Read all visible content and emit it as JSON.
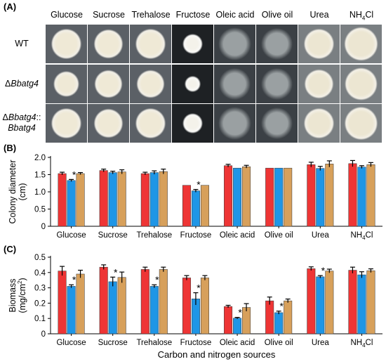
{
  "panel_a": {
    "label": "(A)",
    "columns": [
      "Glucose",
      "Sucrose",
      "Trehalose",
      "Fructose",
      "Oleic acid",
      "Olive oil",
      "Urea",
      "NH4Cl"
    ],
    "last_column_parts": {
      "pre": "NH",
      "sub": "4",
      "post": "Cl"
    },
    "rows": [
      {
        "main": "WT",
        "sub": ""
      },
      {
        "main": "ΔBbatg4",
        "sub": ""
      },
      {
        "main": "ΔBbatg4::",
        "sub": "Bbatg4"
      }
    ]
  },
  "chart_data": [
    {
      "type": "bar",
      "panel": "(B)",
      "ylabel": "Colony diameter",
      "ylabel_unit": "(cm)",
      "ylim": [
        0,
        2.0
      ],
      "yticks": [
        "0",
        "0.5",
        "1.0",
        "1.5",
        "2.0"
      ],
      "categories": [
        "Glucose",
        "Sucrose",
        "Trehalose",
        "Fructose",
        "Oleic acid",
        "Olive oil",
        "Urea",
        "NH4Cl"
      ],
      "series": [
        {
          "color": "#ee3535",
          "values": [
            1.53,
            1.62,
            1.53,
            1.19,
            1.76,
            1.69,
            1.79,
            1.82
          ],
          "errors": [
            0.04,
            0.04,
            0.04,
            0.0,
            0.04,
            0.0,
            0.07,
            0.09
          ]
        },
        {
          "color": "#1f96e6",
          "values": [
            1.33,
            1.56,
            1.56,
            1.03,
            1.69,
            1.69,
            1.68,
            1.72
          ],
          "errors": [
            0.03,
            0.04,
            0.05,
            0.04,
            0.0,
            0.0,
            0.06,
            0.04
          ]
        },
        {
          "color": "#d7a05b",
          "values": [
            1.53,
            1.58,
            1.59,
            1.19,
            1.73,
            1.69,
            1.81,
            1.79
          ],
          "errors": [
            0.03,
            0.06,
            0.07,
            0.0,
            0.04,
            0.0,
            0.09,
            0.06
          ]
        }
      ],
      "significance": [
        {
          "category": 0,
          "series": 1,
          "mark": "*"
        },
        {
          "category": 3,
          "series": 1,
          "mark": "*"
        }
      ]
    },
    {
      "type": "bar",
      "panel": "(C)",
      "ylabel": "Biomass",
      "ylabel_unit": "(mg/cm",
      "ylabel_sup": "2",
      "ylabel_close": ")",
      "xlabel": "Carbon and nitrogen sources",
      "ylim": [
        0,
        0.5
      ],
      "yticks": [
        "0",
        "0.1",
        "0.2",
        "0.3",
        "0.4",
        "0.5"
      ],
      "categories": [
        "Glucose",
        "Sucrose",
        "Trehalose",
        "Fructose",
        "Oleic acid",
        "Olive oil",
        "Urea",
        "NH4Cl"
      ],
      "series": [
        {
          "color": "#ee3535",
          "values": [
            0.41,
            0.435,
            0.42,
            0.365,
            0.178,
            0.215,
            0.425,
            0.415
          ],
          "errors": [
            0.03,
            0.015,
            0.015,
            0.015,
            0.008,
            0.025,
            0.012,
            0.02
          ]
        },
        {
          "color": "#1f96e6",
          "values": [
            0.31,
            0.34,
            0.31,
            0.228,
            0.102,
            0.138,
            0.372,
            0.385
          ],
          "errors": [
            0.01,
            0.03,
            0.01,
            0.04,
            0.005,
            0.01,
            0.008,
            0.02
          ]
        },
        {
          "color": "#d7a05b",
          "values": [
            0.39,
            0.368,
            0.42,
            0.365,
            0.172,
            0.215,
            0.41,
            0.412
          ],
          "errors": [
            0.025,
            0.035,
            0.015,
            0.015,
            0.025,
            0.012,
            0.012,
            0.012
          ]
        }
      ],
      "significance": [
        {
          "category": 0,
          "series": 1,
          "mark": "*"
        },
        {
          "category": 1,
          "series": 1,
          "mark": "*"
        },
        {
          "category": 2,
          "series": 1,
          "mark": "*"
        },
        {
          "category": 3,
          "series": 1,
          "mark": "*"
        },
        {
          "category": 4,
          "series": 1,
          "mark": "*"
        },
        {
          "category": 5,
          "series": 1,
          "mark": "*"
        },
        {
          "category": 6,
          "series": 1,
          "mark": "*"
        }
      ]
    }
  ]
}
